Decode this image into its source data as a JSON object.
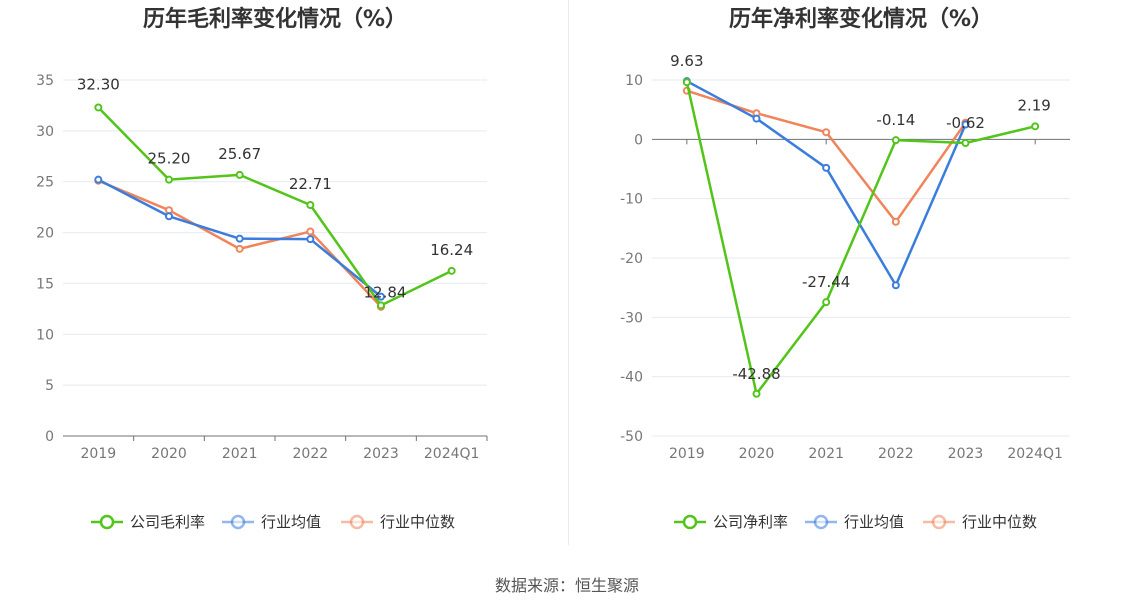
{
  "source_text": "数据来源：恒生聚源",
  "chart_data": [
    {
      "type": "line",
      "title": "历年毛利率变化情况（%）",
      "categories": [
        "2019",
        "2020",
        "2021",
        "2022",
        "2023",
        "2024Q1"
      ],
      "ylim": [
        0,
        35
      ],
      "yticks": [
        0,
        5,
        10,
        15,
        20,
        25,
        30,
        35
      ],
      "grid": true,
      "legend_position": "bottom",
      "series": [
        {
          "name": "公司毛利率",
          "color": "#52c41a",
          "values": [
            32.3,
            25.2,
            25.67,
            22.71,
            12.84,
            16.24
          ],
          "labels": [
            "32.30",
            "25.20",
            "25.67",
            "22.71",
            "12.84",
            "16.24"
          ]
        },
        {
          "name": "行业均值",
          "color": "#3b7ddd",
          "values": [
            25.2,
            21.6,
            19.4,
            19.35,
            13.7,
            null
          ]
        },
        {
          "name": "行业中位数",
          "color": "#f0845a",
          "values": [
            25.1,
            22.2,
            18.4,
            20.1,
            12.7,
            null
          ]
        }
      ]
    },
    {
      "type": "line",
      "title": "历年净利率变化情况（%）",
      "categories": [
        "2019",
        "2020",
        "2021",
        "2022",
        "2023",
        "2024Q1"
      ],
      "ylim": [
        -50,
        10
      ],
      "yticks": [
        -50,
        -40,
        -30,
        -20,
        -10,
        0,
        10
      ],
      "grid": true,
      "legend_position": "bottom",
      "series": [
        {
          "name": "公司净利率",
          "color": "#52c41a",
          "values": [
            9.63,
            -42.88,
            -27.44,
            -0.14,
            -0.62,
            2.19
          ],
          "labels": [
            "9.63",
            "-42.88",
            "-27.44",
            "-0.14",
            "-0.62",
            "2.19"
          ]
        },
        {
          "name": "行业均值",
          "color": "#3b7ddd",
          "values": [
            9.8,
            3.5,
            -4.8,
            -24.6,
            2.5,
            null
          ]
        },
        {
          "name": "行业中位数",
          "color": "#f0845a",
          "values": [
            8.2,
            4.4,
            1.2,
            -13.9,
            2.8,
            null
          ]
        }
      ]
    }
  ]
}
